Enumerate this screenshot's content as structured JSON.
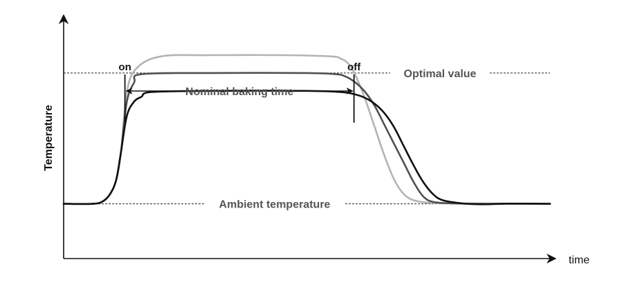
{
  "chart_data": {
    "type": "line",
    "title": "",
    "xlabel": "time",
    "ylabel": "Temperature",
    "x_range": [
      0,
      100
    ],
    "y_range": [
      0,
      100
    ],
    "reference_lines": [
      {
        "name": "Optimal value",
        "y": 78
      },
      {
        "name": "Ambient temperature",
        "y": 23
      }
    ],
    "markers": [
      {
        "label": "on",
        "x": 12.6
      },
      {
        "label": "off",
        "x": 59.7
      }
    ],
    "interval_label": "Nominal baking time",
    "series": [
      {
        "color": "#b3b3b3",
        "x": [
          0,
          6,
          8,
          9.5,
          10.8,
          11.8,
          13,
          15,
          20,
          30,
          45,
          55,
          57,
          58.5,
          60,
          62,
          64,
          66,
          68,
          70,
          72,
          75,
          80,
          86,
          92,
          100
        ],
        "y": [
          23,
          23,
          24,
          27,
          33,
          45,
          70,
          80,
          85,
          85.5,
          85.5,
          85,
          84,
          82,
          77,
          67,
          55,
          43,
          33,
          27,
          24.5,
          23.5,
          23.2,
          23.2,
          23,
          23
        ]
      },
      {
        "color": "#505050",
        "x": [
          0,
          6,
          8,
          9.5,
          10.8,
          11.8,
          13,
          14.5,
          16,
          30,
          50,
          56,
          58,
          60,
          62,
          64,
          66,
          68,
          70,
          72,
          74,
          76,
          80,
          86,
          92,
          100
        ],
        "y": [
          23,
          23,
          24,
          27,
          33,
          45,
          66,
          74,
          77.5,
          78,
          78,
          77.5,
          76.5,
          74,
          70,
          64,
          56,
          48,
          40,
          32,
          26,
          23.8,
          23.2,
          23,
          23.1,
          23
        ]
      },
      {
        "color": "#111111",
        "x": [
          0,
          6,
          8,
          9.5,
          10.8,
          11.8,
          13,
          14.5,
          16,
          18,
          30,
          50,
          57,
          60,
          62,
          64,
          66,
          68,
          70,
          72,
          74,
          76,
          78,
          82,
          86,
          92,
          100
        ],
        "y": [
          23,
          23,
          24,
          27,
          33,
          45,
          60,
          66,
          68,
          70,
          70.5,
          70.5,
          70,
          69,
          67.5,
          65,
          61,
          55,
          47,
          39,
          32,
          27,
          24.5,
          23.2,
          22.8,
          23.1,
          23
        ]
      }
    ]
  }
}
